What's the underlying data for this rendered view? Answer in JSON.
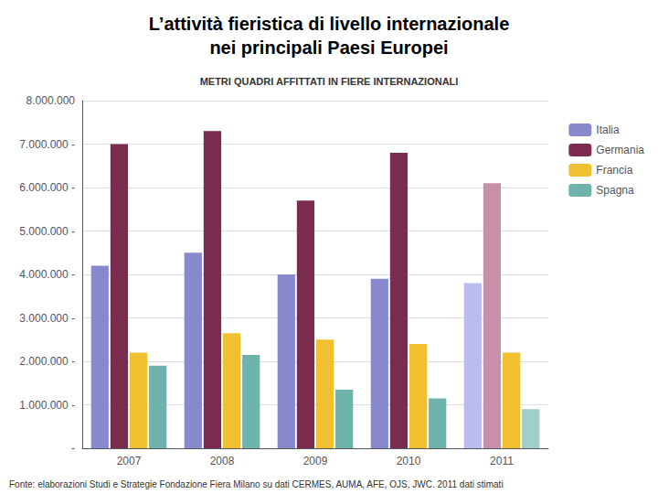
{
  "chart_data": {
    "type": "bar",
    "title": "L’attività fieristica di livello internazionale\nnei principali Paesi Europei",
    "subtitle": "METRI QUADRI AFFITTATI IN FIERE INTERNAZIONALI",
    "annotations": [
      "Fonte: elaborazioni Studi e Strategie Fondazione Fiera Milano su dati CERMES, AUMA, AFE, OJS, JWC. 2011 dati stimati"
    ],
    "categories": [
      "2007",
      "2008",
      "2009",
      "2010",
      "2011"
    ],
    "series": [
      {
        "name": "Italia",
        "color": "#8888cc",
        "colors": [
          "#8888cc",
          "#8888cc",
          "#8888cc",
          "#8888cc",
          "#bbbbee"
        ],
        "values": [
          4200000,
          4500000,
          4000000,
          3900000,
          3800000
        ]
      },
      {
        "name": "Germania",
        "color": "#7b2b4e",
        "colors": [
          "#7b2b4e",
          "#7b2b4e",
          "#7b2b4e",
          "#7b2b4e",
          "#c990aa"
        ],
        "values": [
          7000000,
          7300000,
          5700000,
          6800000,
          6100000
        ]
      },
      {
        "name": "Francia",
        "color": "#f0c030",
        "colors": [
          "#f0c030",
          "#f0c030",
          "#f0c030",
          "#f0c030",
          "#f0c030"
        ],
        "values": [
          2200000,
          2650000,
          2500000,
          2400000,
          2200000
        ]
      },
      {
        "name": "Spagna",
        "color": "#6db3ab",
        "colors": [
          "#6db3ab",
          "#6db3ab",
          "#6db3ab",
          "#6db3ab",
          "#9ecfca"
        ],
        "values": [
          1900000,
          2150000,
          1350000,
          1150000,
          900000
        ]
      }
    ],
    "ylim": [
      0,
      8000000
    ],
    "yticks": [
      {
        "value": 0,
        "label": "-"
      },
      {
        "value": 1000000,
        "label": "1.000.000 -"
      },
      {
        "value": 2000000,
        "label": "2.000.000 -"
      },
      {
        "value": 3000000,
        "label": "3.000.000 -"
      },
      {
        "value": 4000000,
        "label": "4.000.000 -"
      },
      {
        "value": 5000000,
        "label": "5.000.000 -"
      },
      {
        "value": 6000000,
        "label": "6.000.000 -"
      },
      {
        "value": 7000000,
        "label": "7.000.000 -"
      },
      {
        "value": 8000000,
        "label": "8.000.000"
      }
    ],
    "grid": true,
    "legend": "upper right"
  }
}
